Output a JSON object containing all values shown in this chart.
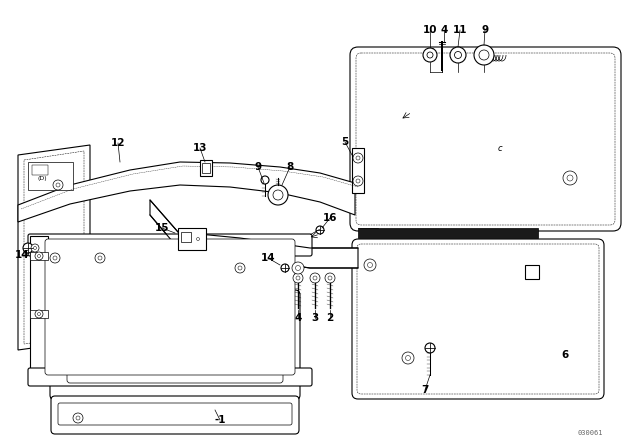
{
  "bg_color": "#ffffff",
  "lc": "#000000",
  "watermark": "030061",
  "lw_main": 0.8,
  "lw_thin": 0.5,
  "font_size": 7.5
}
